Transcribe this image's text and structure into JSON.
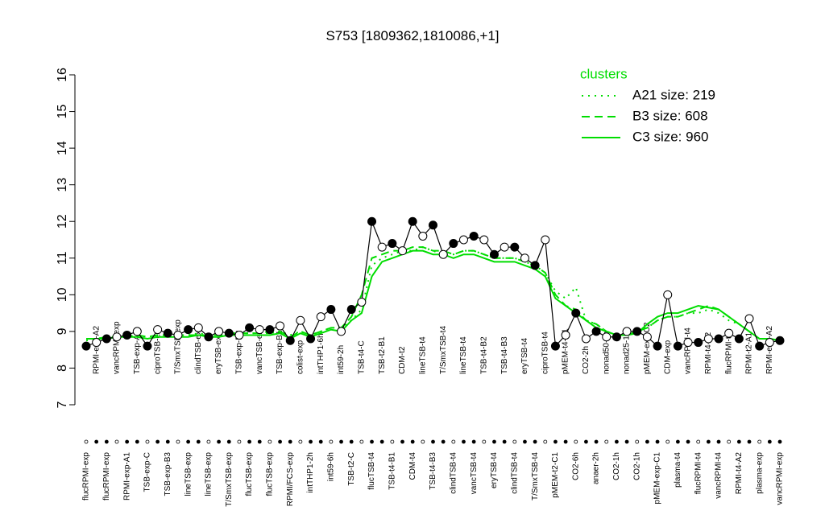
{
  "chart_data": {
    "type": "line",
    "title": "S753 [1809362,1810086,+1]",
    "categories": [
      "flucRPMI-exp",
      "RPMI-exp-A2",
      "flucRPMI-exp",
      "vancRPMI-exp",
      "RPMI-exp-A1",
      "TSB-exp-A",
      "TSB-exp-C",
      "ciproTSB-exp",
      "TSB-exp-B3",
      "T/SmxTSB-exp",
      "lineTSB-exp",
      "clindTSB-exp",
      "lineTSB-exp",
      "eryTSB-exp",
      "T/SmxTSB-exp",
      "TSB-exp-B2",
      "flucTSB-exp",
      "vancTSB-exp",
      "flucTSB-exp",
      "TSB-exp-B1",
      "RPMI/FCS-exp",
      "colist-exp",
      "intTHP1-2h",
      "intTHP1-6h",
      "int59-6h",
      "int59-2h",
      "TSB-t2-C",
      "TSB-t4-C",
      "flucTSB-t4",
      "TSB-t2-B1",
      "TSB-t4-B1",
      "CDM-t2",
      "CDM-t4",
      "lineTSB-t4",
      "TSB-t4-B3",
      "T/SmxTSB-t4",
      "clindTSB-t4",
      "lineTSB-t4",
      "vancTSB-t4",
      "TSB-t4-B2",
      "eryTSB-t4",
      "TSB-t4-B3",
      "clindTSB-t4",
      "eryTSB-t4",
      "T/SmxTSB-t4",
      "ciproTSB-t4",
      "pMEM-t2-C1",
      "pMEM-t4-C1",
      "CO2-6h",
      "CO2-2h",
      "anaer-2h",
      "nonad50-1h",
      "CO2-1h",
      "nonad25-1h",
      "CO2-1h",
      "pMEM-exp-C2",
      "pMEM-exp-C1",
      "CDM-exp",
      "plasma-t4",
      "vancRPMI-t4",
      "flucRPMI-t4",
      "RPMI-t4-A2",
      "vancRPMI-t4",
      "flucRPMI-t4",
      "RPMI-t4-A2",
      "RPMI-t2-A1",
      "plasma-exp",
      "RPMI-exp-A2",
      "vancRPMI-exp"
    ],
    "values": [
      8.6,
      8.7,
      8.8,
      8.85,
      8.9,
      9.0,
      8.6,
      9.05,
      8.95,
      8.9,
      9.05,
      9.1,
      8.85,
      9.0,
      8.95,
      8.9,
      9.1,
      9.05,
      9.05,
      9.15,
      8.75,
      9.3,
      8.8,
      9.4,
      9.6,
      9.0,
      9.6,
      9.8,
      12.0,
      11.3,
      11.4,
      11.2,
      12.0,
      11.6,
      11.9,
      11.1,
      11.4,
      11.5,
      11.6,
      11.5,
      11.1,
      11.3,
      11.3,
      11.0,
      10.8,
      11.5,
      8.6,
      8.9,
      9.5,
      8.8,
      9.0,
      8.85,
      8.85,
      9.0,
      9.0,
      8.85,
      8.6,
      10.0,
      8.6,
      8.7,
      8.7,
      8.8,
      8.8,
      8.95,
      8.8,
      9.35,
      8.6,
      8.7,
      8.75
    ],
    "color": "#000000",
    "series": [
      {
        "name": "A21 size: 219",
        "color": "#00dd00",
        "style": "dotted",
        "values": [
          8.75,
          8.8,
          8.8,
          8.85,
          8.85,
          8.9,
          8.85,
          8.9,
          8.9,
          8.9,
          8.9,
          8.95,
          8.9,
          8.9,
          8.95,
          8.95,
          8.95,
          8.95,
          9.0,
          9.0,
          8.9,
          9.0,
          8.9,
          9.0,
          9.1,
          9.1,
          9.3,
          9.6,
          10.8,
          11.0,
          11.1,
          11.2,
          11.2,
          11.3,
          11.2,
          11.1,
          11.1,
          11.2,
          11.2,
          11.1,
          11.0,
          11.0,
          11.0,
          10.9,
          10.8,
          10.6,
          10.1,
          9.9,
          10.2,
          9.3,
          9.2,
          9.0,
          8.9,
          8.9,
          9.0,
          9.1,
          9.3,
          9.4,
          9.4,
          9.5,
          9.5,
          9.6,
          9.5,
          9.3,
          9.2,
          9.0,
          8.8,
          8.8,
          8.75
        ]
      },
      {
        "name": "B3 size: 608",
        "color": "#00dd00",
        "style": "dashed",
        "values": [
          8.8,
          8.8,
          8.85,
          8.85,
          8.85,
          8.9,
          8.85,
          8.9,
          8.9,
          8.9,
          8.9,
          8.9,
          8.9,
          8.9,
          8.95,
          8.95,
          8.95,
          8.95,
          8.95,
          9.0,
          8.85,
          9.0,
          8.9,
          9.0,
          9.1,
          9.1,
          9.4,
          10.0,
          11.0,
          11.1,
          11.2,
          11.2,
          11.3,
          11.3,
          11.2,
          11.2,
          11.1,
          11.2,
          11.2,
          11.1,
          11.0,
          11.0,
          11.0,
          10.9,
          10.8,
          10.6,
          10.0,
          9.7,
          9.6,
          9.3,
          9.2,
          9.0,
          8.9,
          8.9,
          9.0,
          9.1,
          9.3,
          9.4,
          9.4,
          9.5,
          9.6,
          9.7,
          9.6,
          9.4,
          9.2,
          9.0,
          8.8,
          8.8,
          8.75
        ]
      },
      {
        "name": "C3 size: 960",
        "color": "#00dd00",
        "style": "solid",
        "values": [
          8.8,
          8.8,
          8.8,
          8.85,
          8.85,
          8.85,
          8.8,
          8.85,
          8.85,
          8.85,
          8.85,
          8.9,
          8.85,
          8.85,
          8.9,
          8.9,
          8.9,
          8.9,
          8.9,
          8.95,
          8.8,
          8.95,
          8.85,
          8.95,
          9.05,
          9.0,
          9.3,
          9.5,
          10.5,
          10.9,
          11.0,
          11.1,
          11.2,
          11.2,
          11.1,
          11.1,
          11.0,
          11.1,
          11.1,
          11.0,
          10.9,
          10.9,
          10.9,
          10.8,
          10.7,
          10.5,
          9.9,
          9.7,
          9.5,
          9.3,
          9.1,
          9.0,
          8.9,
          8.9,
          8.95,
          9.2,
          9.4,
          9.5,
          9.5,
          9.6,
          9.7,
          9.65,
          9.6,
          9.4,
          9.2,
          9.0,
          8.8,
          8.8,
          8.75
        ]
      }
    ],
    "ylim": [
      7,
      16
    ],
    "yticks": [
      7,
      8,
      9,
      10,
      11,
      12,
      13,
      14,
      15,
      16
    ],
    "legend_title": "clusters",
    "legend": "top-right"
  }
}
